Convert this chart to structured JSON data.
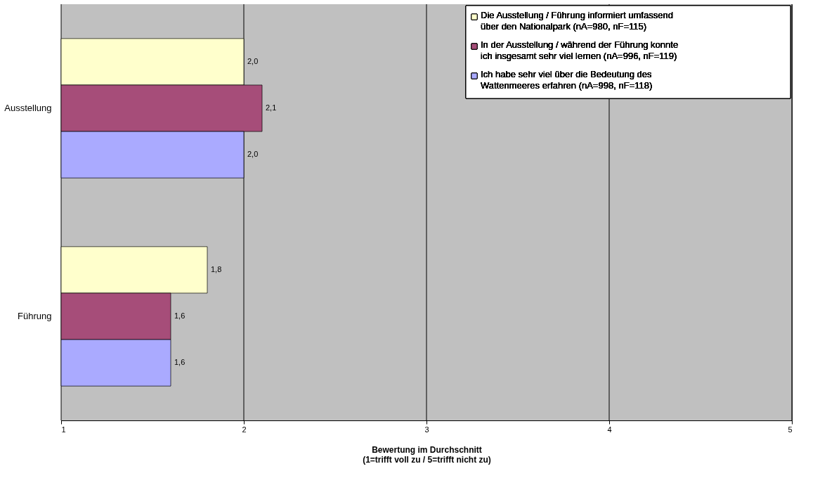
{
  "chart_data": {
    "type": "bar",
    "orientation": "horizontal",
    "xlabel": "Bewertung im Durchschnitt\n(1=trifft voll zu / 5=trifft nicht zu)",
    "categories": [
      "Ausstellung",
      "Führung"
    ],
    "series": [
      {
        "name": "Die Ausstellung / Führung informiert umfassend über den Nationalpark (nA=980, nF=115)",
        "color": "#ffffcc",
        "values": [
          2.0,
          1.8
        ],
        "value_labels": [
          "2,0",
          "1,8"
        ]
      },
      {
        "name": "In der Ausstellung / während der Führung konnte ich insgesamt sehr viel lernen (nA=996, nF=119)",
        "color": "#a64d79",
        "values": [
          2.1,
          1.6
        ],
        "value_labels": [
          "2,1",
          "1,6"
        ]
      },
      {
        "name": "Ich habe sehr viel über die Bedeutung des Wattenmeeres erfahren (nA=998, nF=118)",
        "color": "#aaaaff",
        "values": [
          2.0,
          1.6
        ],
        "value_labels": [
          "2,0",
          "1,6"
        ]
      }
    ],
    "xlim": [
      1,
      5
    ],
    "xticks": [
      1,
      2,
      3,
      4,
      5
    ],
    "grid": "x",
    "legend": "top right"
  }
}
